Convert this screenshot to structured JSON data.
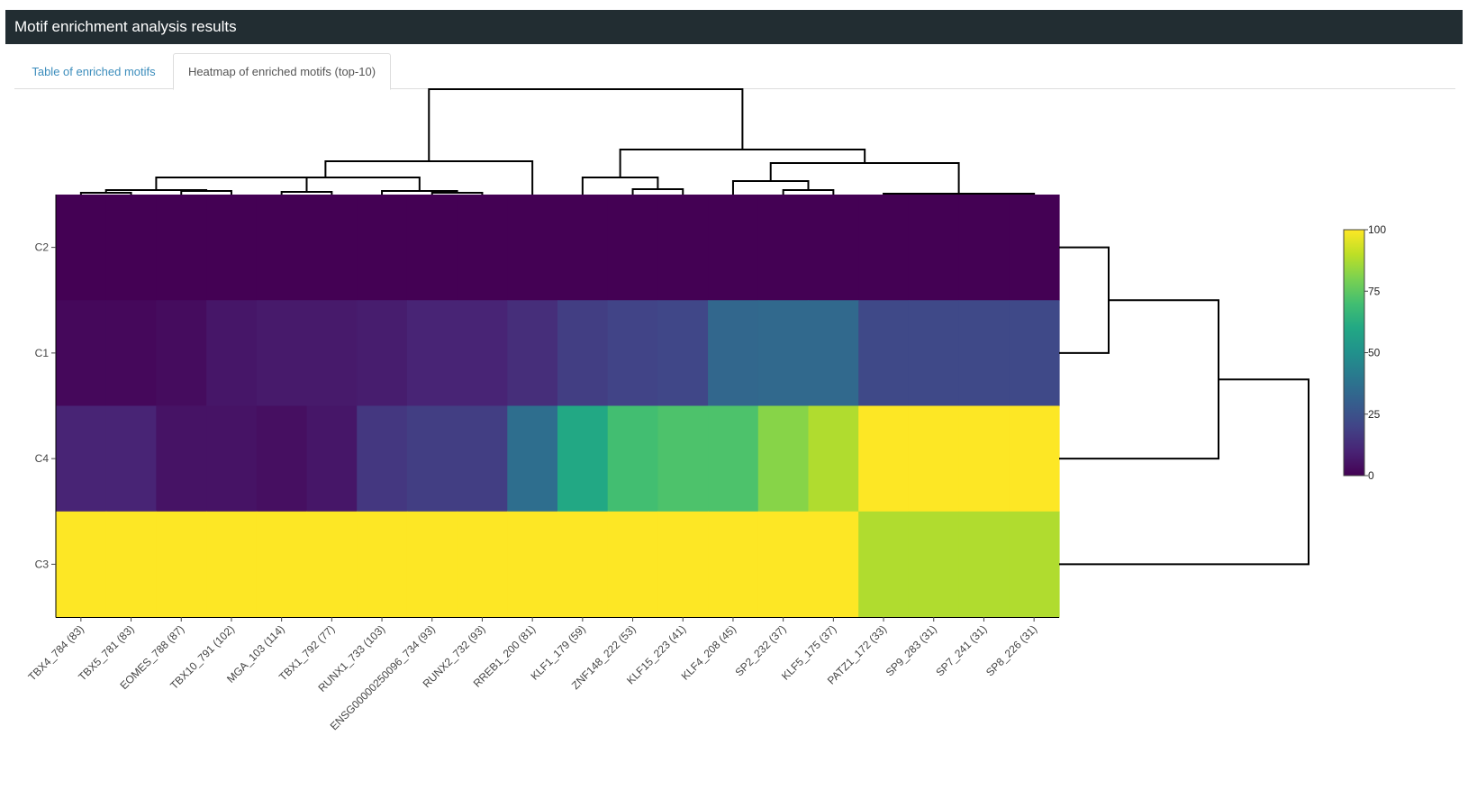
{
  "header": {
    "title": "Motif enrichment analysis results"
  },
  "tabs": [
    {
      "label": "Table of enriched motifs",
      "active": false
    },
    {
      "label": "Heatmap of enriched motifs (top-10)",
      "active": true
    }
  ],
  "colors": {
    "header_bg": "#222d32",
    "tab_link": "#3c8dbc"
  },
  "chart_data": {
    "type": "heatmap",
    "title": "",
    "colorscale": "viridis",
    "zlim": [
      0,
      100
    ],
    "colorbar_ticks": [
      0,
      25,
      50,
      75,
      100
    ],
    "rows": [
      "C2",
      "C1",
      "C4",
      "C3"
    ],
    "columns": [
      "TBX4_784 (83)",
      "TBX5_781 (83)",
      "EOMES_788 (87)",
      "TBX10_791 (102)",
      "MGA_103 (114)",
      "TBX1_792 (77)",
      "RUNX1_733 (103)",
      "ENSG00000250096_734 (93)",
      "RUNX2_732 (93)",
      "RREB1_200 (81)",
      "KLF1_179 (59)",
      "ZNF148_222 (53)",
      "KLF15_223 (41)",
      "KLF4_208 (45)",
      "SP2_232 (37)",
      "KLF5_175 (37)",
      "PATZ1_172 (33)",
      "SP9_283 (31)",
      "SP7_241 (31)",
      "SP8_226 (31)"
    ],
    "values": [
      [
        0,
        0,
        0,
        0,
        0,
        0,
        0,
        0,
        0,
        0,
        0,
        0,
        0,
        0,
        0,
        0,
        0,
        0,
        0,
        0
      ],
      [
        2,
        2,
        3,
        6,
        7,
        7,
        8,
        10,
        10,
        13,
        18,
        20,
        21,
        33,
        34,
        34,
        22,
        22,
        22,
        22
      ],
      [
        10,
        10,
        5,
        5,
        4,
        6,
        16,
        18,
        18,
        36,
        60,
        70,
        72,
        72,
        82,
        88,
        100,
        100,
        100,
        100
      ],
      [
        100,
        100,
        100,
        100,
        100,
        100,
        100,
        100,
        100,
        100,
        100,
        100,
        100,
        100,
        100,
        100,
        88,
        88,
        88,
        88
      ]
    ]
  }
}
